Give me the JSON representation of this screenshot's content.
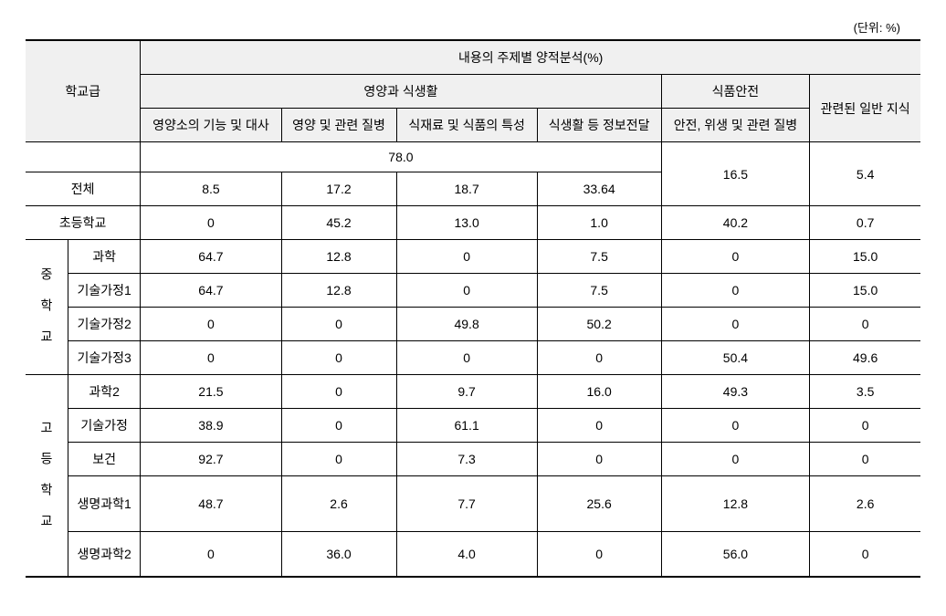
{
  "unit": "(단위: %)",
  "header": {
    "school_level": "학교급",
    "analysis_title": "내용의 주제별 양적분석(%)",
    "nutrition_life": "영양과 식생활",
    "food_safety": "식품안전",
    "related_knowledge": "관련된 일반 지식",
    "col1": "영양소의 기능 및 대사",
    "col2": "영양 및 관련 질병",
    "col3": "식재료 및 식품의 특성",
    "col4": "식생활 등 정보전달",
    "col5": "안전, 위생 및 관련 질병"
  },
  "summary": {
    "nut_total": "78.0",
    "safety_total": "16.5",
    "knowledge_total": "5.4"
  },
  "rows": {
    "total_label": "전체",
    "total": [
      "8.5",
      "17.2",
      "18.7",
      "33.64"
    ],
    "elem_label": "초등학교",
    "elem": [
      "0",
      "45.2",
      "13.0",
      "1.0",
      "40.2",
      "0.7"
    ],
    "mid_label": "중 학 교",
    "mid_science_label": "과학",
    "mid_science": [
      "64.7",
      "12.8",
      "0",
      "7.5",
      "0",
      "15.0"
    ],
    "mid_tech1_label": "기술가정1",
    "mid_tech1": [
      "64.7",
      "12.8",
      "0",
      "7.5",
      "0",
      "15.0"
    ],
    "mid_tech2_label": "기술가정2",
    "mid_tech2": [
      "0",
      "0",
      "49.8",
      "50.2",
      "0",
      "0"
    ],
    "mid_tech3_label": "기술가정3",
    "mid_tech3": [
      "0",
      "0",
      "0",
      "0",
      "50.4",
      "49.6"
    ],
    "high_label": "고 등 학 교",
    "high_sci2_label": "과학2",
    "high_sci2": [
      "21.5",
      "0",
      "9.7",
      "16.0",
      "49.3",
      "3.5"
    ],
    "high_tech_label": "기술가정",
    "high_tech": [
      "38.9",
      "0",
      "61.1",
      "0",
      "0",
      "0"
    ],
    "high_health_label": "보건",
    "high_health": [
      "92.7",
      "0",
      "7.3",
      "0",
      "0",
      "0"
    ],
    "high_bio1_label": "생명과학1",
    "high_bio1": [
      "48.7",
      "2.6",
      "7.7",
      "25.6",
      "12.8",
      "2.6"
    ],
    "high_bio2_label": "생명과학2",
    "high_bio2": [
      "0",
      "36.0",
      "4.0",
      "0",
      "56.0",
      "0"
    ]
  },
  "style": {
    "header_bg": "#f0f0f0",
    "border_color": "#000000",
    "font_size": 14
  }
}
